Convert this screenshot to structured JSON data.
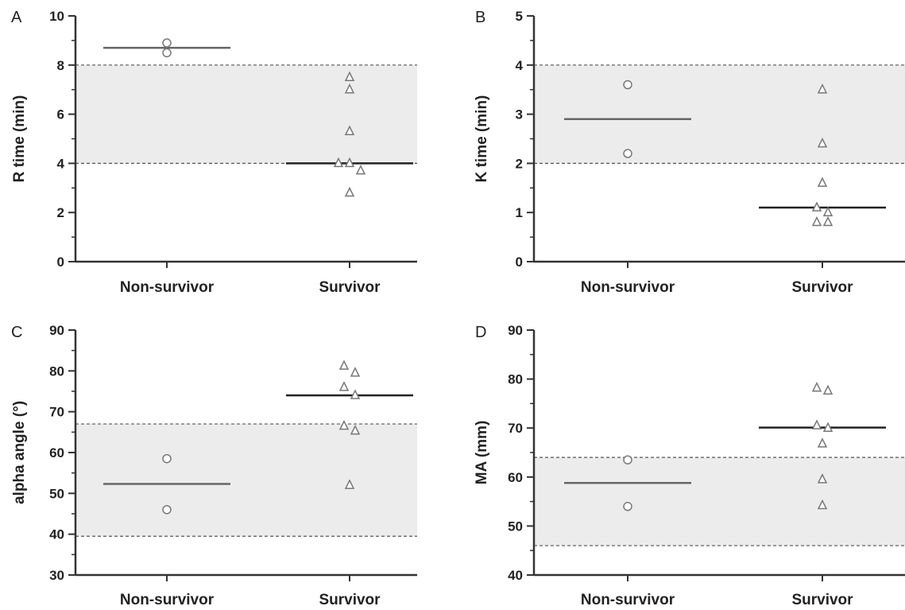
{
  "colors": {
    "band": "#ececec",
    "axis": "#333333",
    "reference_line": "#555555",
    "median_nonsurvivor": "#666666",
    "median_survivor": "#222222",
    "marker": "#777777"
  },
  "chart_data": [
    {
      "panel": "A",
      "type": "scatter",
      "categories": [
        "Non-survivor",
        "Survivor"
      ],
      "ylabel": "R time (min)",
      "ylim": [
        0,
        10
      ],
      "yticks": [
        0,
        2,
        4,
        6,
        8,
        10
      ],
      "reference_range": [
        4,
        8
      ],
      "series": [
        {
          "category": "Non-survivor",
          "marker": "circle",
          "values": [
            8.5,
            8.9
          ],
          "median": 8.7
        },
        {
          "category": "Survivor",
          "marker": "triangle",
          "values": [
            7.5,
            7.0,
            5.3,
            4.0,
            4.0,
            3.7,
            2.8
          ],
          "median": 4.0
        }
      ]
    },
    {
      "panel": "B",
      "type": "scatter",
      "categories": [
        "Non-survivor",
        "Survivor"
      ],
      "ylabel": "K time (min)",
      "ylim": [
        0,
        5
      ],
      "yticks": [
        0,
        1,
        2,
        3,
        4,
        5
      ],
      "reference_range": [
        2,
        4
      ],
      "series": [
        {
          "category": "Non-survivor",
          "marker": "circle",
          "values": [
            3.6,
            2.2
          ],
          "median": 2.9
        },
        {
          "category": "Survivor",
          "marker": "triangle",
          "values": [
            3.5,
            2.4,
            1.6,
            1.1,
            1.0,
            0.8,
            0.8
          ],
          "median": 1.1
        }
      ]
    },
    {
      "panel": "C",
      "type": "scatter",
      "categories": [
        "Non-survivor",
        "Survivor"
      ],
      "ylabel": "alpha angle (°)",
      "ylim": [
        30,
        90
      ],
      "yticks": [
        30,
        40,
        50,
        60,
        70,
        80,
        90
      ],
      "reference_range": [
        39.5,
        67
      ],
      "series": [
        {
          "category": "Non-survivor",
          "marker": "circle",
          "values": [
            58.5,
            46.0
          ],
          "median": 52.3
        },
        {
          "category": "Survivor",
          "marker": "triangle",
          "values": [
            81.2,
            79.5,
            76.0,
            74.0,
            66.5,
            65.3,
            52.0
          ],
          "median": 74.0
        }
      ]
    },
    {
      "panel": "D",
      "type": "scatter",
      "categories": [
        "Non-survivor",
        "Survivor"
      ],
      "ylabel": "MA (mm)",
      "ylim": [
        40,
        90
      ],
      "yticks": [
        40,
        50,
        60,
        70,
        80,
        90
      ],
      "reference_range": [
        46,
        64
      ],
      "series": [
        {
          "category": "Non-survivor",
          "marker": "circle",
          "values": [
            63.5,
            54.0
          ],
          "median": 58.8
        },
        {
          "category": "Survivor",
          "marker": "triangle",
          "values": [
            78.2,
            77.6,
            70.5,
            70.0,
            66.8,
            59.5,
            54.2
          ],
          "median": 70.1
        }
      ]
    }
  ]
}
